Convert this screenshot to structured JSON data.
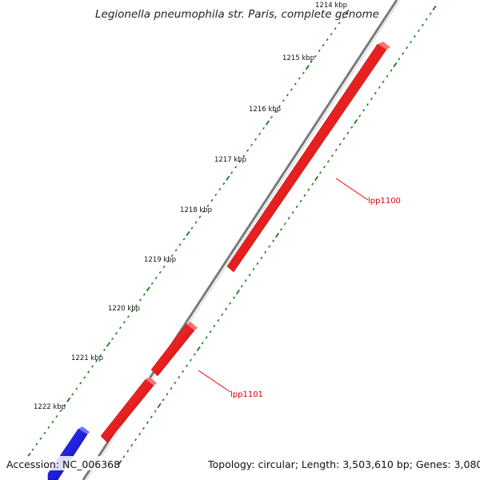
{
  "title": "Legionella pneumophila str. Paris, complete genome",
  "footer": {
    "accession": "Accession: NC_006368",
    "summary": "Topology: circular; Length: 3,503,610 bp; Genes: 3,080"
  },
  "ticks": [
    "1214 kbp",
    "1215 kbp",
    "1216 kbp",
    "1217 kbp",
    "1218 kbp",
    "1219 kbp",
    "1220 kbp",
    "1221 kbp",
    "1222 kbp"
  ],
  "genes": [
    {
      "name": "lpp1100",
      "label": "lpp1100",
      "strand": "reverse",
      "color": "#ee0000"
    },
    {
      "name": "lpp1101",
      "label": "lpp1101",
      "strand": "reverse",
      "color": "#ee0000"
    },
    {
      "name": "lpp1101-second",
      "label": "",
      "strand": "reverse",
      "color": "#ee0000"
    },
    {
      "name": "forward-gene",
      "label": "",
      "strand": "forward",
      "color": "#0000ee"
    }
  ],
  "colors": {
    "backbone": "#7a7a7a",
    "tick_marks": "#1a7a1a",
    "reverse_gene": "#ee0000",
    "forward_gene": "#0000ee",
    "label_line": "#ee0000"
  }
}
